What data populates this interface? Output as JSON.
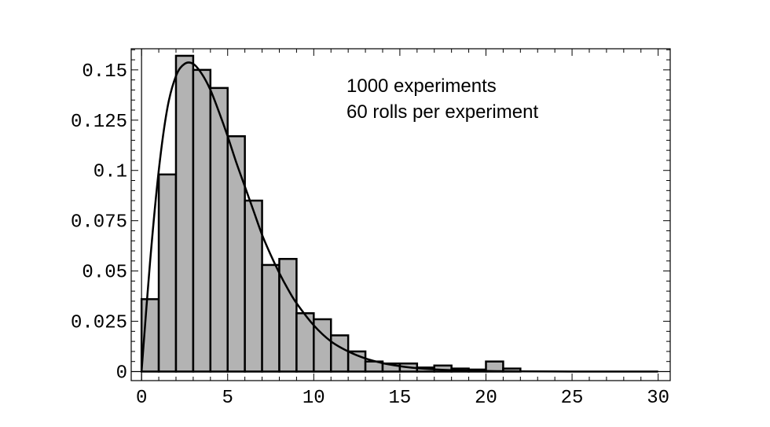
{
  "chart_data": {
    "type": "bar",
    "title": "",
    "xlabel": "",
    "ylabel": "",
    "xlim": [
      -0.6,
      30.7
    ],
    "ylim": [
      -0.0045,
      0.1605
    ],
    "bin_width": 1,
    "bins_start": [
      0,
      1,
      2,
      3,
      4,
      5,
      6,
      7,
      8,
      9,
      10,
      11,
      12,
      13,
      14,
      15,
      16,
      17,
      18,
      19,
      20,
      21
    ],
    "values": [
      0.036,
      0.098,
      0.157,
      0.15,
      0.141,
      0.117,
      0.085,
      0.053,
      0.056,
      0.029,
      0.026,
      0.018,
      0.01,
      0.005,
      0.004,
      0.004,
      0.002,
      0.003,
      0.0015,
      0.001,
      0.005,
      0.0015
    ],
    "x_ticks": [
      0,
      5,
      10,
      15,
      20,
      25,
      30
    ],
    "x_tick_labels": [
      "0",
      "5",
      "10",
      "15",
      "20",
      "25",
      "30"
    ],
    "y_ticks": [
      0,
      0.025,
      0.05,
      0.075,
      0.1,
      0.125,
      0.15
    ],
    "y_tick_labels": [
      "0",
      "0.025",
      "0.05",
      "0.075",
      "0.1",
      "0.125",
      "0.15"
    ],
    "fit_curve": {
      "type": "line",
      "x": [
        0,
        0.5,
        1,
        1.5,
        2,
        2.5,
        3,
        3.5,
        4,
        4.5,
        5,
        5.5,
        6,
        6.5,
        7,
        7.5,
        8,
        8.5,
        9,
        10,
        11,
        12,
        13,
        14,
        15,
        16,
        17,
        18,
        20,
        22,
        25,
        28,
        30
      ],
      "y": [
        0,
        0.055,
        0.1,
        0.131,
        0.147,
        0.153,
        0.153,
        0.148,
        0.14,
        0.129,
        0.117,
        0.104,
        0.092,
        0.08,
        0.068,
        0.058,
        0.049,
        0.041,
        0.034,
        0.023,
        0.015,
        0.01,
        0.0065,
        0.0042,
        0.0027,
        0.0017,
        0.0011,
        0.0007,
        0.0003,
        0.0001,
        2e-05,
        5e-06,
        0
      ]
    },
    "annotations": [
      "1000 experiments",
      "60 rolls per experiment"
    ],
    "grid": false,
    "legend": "none"
  }
}
